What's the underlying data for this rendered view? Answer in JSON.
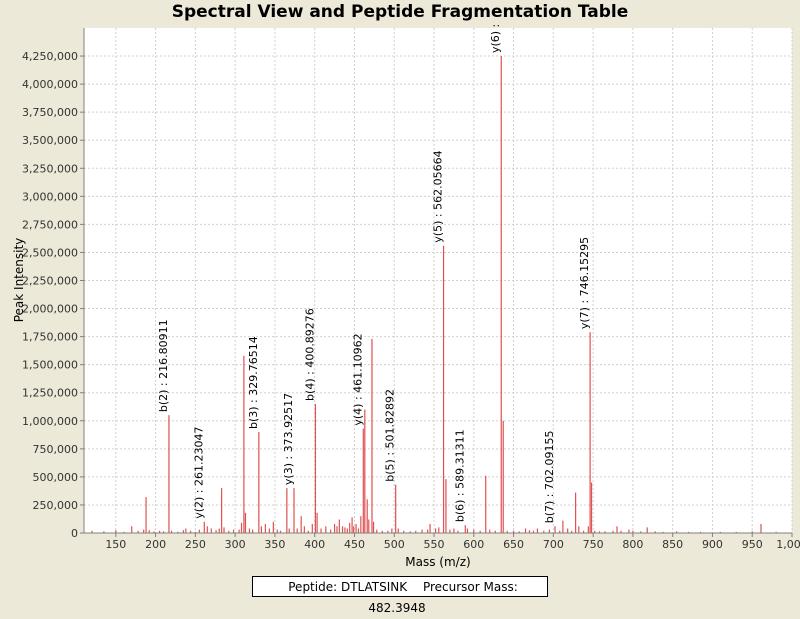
{
  "chart_data": {
    "type": "bar",
    "title": "Spectral View and Peptide Fragmentation Table",
    "xlabel": "Mass (m/z)",
    "ylabel": "Peak Intensity",
    "xlim": [
      110,
      1000
    ],
    "ylim": [
      0,
      4500000
    ],
    "x_ticks": [
      150,
      200,
      250,
      300,
      350,
      400,
      450,
      500,
      550,
      600,
      650,
      700,
      750,
      800,
      850,
      900,
      950,
      1000
    ],
    "x_tick_labels": [
      "150",
      "200",
      "250",
      "300",
      "350",
      "400",
      "450",
      "500",
      "550",
      "600",
      "650",
      "700",
      "750",
      "800",
      "850",
      "900",
      "950",
      "1,000"
    ],
    "y_ticks": [
      0,
      250000,
      500000,
      750000,
      1000000,
      1250000,
      1500000,
      1750000,
      2000000,
      2250000,
      2500000,
      2750000,
      3000000,
      3250000,
      3500000,
      3750000,
      4000000,
      4250000
    ],
    "y_tick_labels": [
      "0",
      "250,000",
      "500,000",
      "750,000",
      "1,000,000",
      "1,250,000",
      "1,500,000",
      "1,750,000",
      "2,000,000",
      "2,250,000",
      "2,500,000",
      "2,750,000",
      "3,000,000",
      "3,250,000",
      "3,500,000",
      "3,750,000",
      "4,000,000",
      "4,250,000"
    ],
    "grid": true,
    "peak_color": "#E05050",
    "peaks": [
      [
        120,
        20000
      ],
      [
        135,
        15000
      ],
      [
        150,
        25000
      ],
      [
        160,
        10000
      ],
      [
        170,
        60000
      ],
      [
        178,
        20000
      ],
      [
        185,
        30000
      ],
      [
        188,
        320000
      ],
      [
        192,
        25000
      ],
      [
        198,
        15000
      ],
      [
        205,
        20000
      ],
      [
        210,
        15000
      ],
      [
        216.8,
        1050000
      ],
      [
        220,
        20000
      ],
      [
        228,
        12000
      ],
      [
        235,
        25000
      ],
      [
        238,
        40000
      ],
      [
        244,
        20000
      ],
      [
        250,
        10000
      ],
      [
        255,
        30000
      ],
      [
        261.2,
        100000
      ],
      [
        265,
        60000
      ],
      [
        270,
        40000
      ],
      [
        276,
        25000
      ],
      [
        280,
        40000
      ],
      [
        283,
        400000
      ],
      [
        286,
        50000
      ],
      [
        292,
        20000
      ],
      [
        298,
        30000
      ],
      [
        305,
        30000
      ],
      [
        308,
        90000
      ],
      [
        311,
        1580000
      ],
      [
        313,
        180000
      ],
      [
        318,
        40000
      ],
      [
        322,
        30000
      ],
      [
        329.8,
        900000
      ],
      [
        333,
        60000
      ],
      [
        338,
        80000
      ],
      [
        343,
        40000
      ],
      [
        348,
        100000
      ],
      [
        353,
        30000
      ],
      [
        357,
        20000
      ],
      [
        365,
        400000
      ],
      [
        368,
        40000
      ],
      [
        374,
        400000
      ],
      [
        378,
        40000
      ],
      [
        383,
        150000
      ],
      [
        387,
        60000
      ],
      [
        392,
        20000
      ],
      [
        397,
        80000
      ],
      [
        400.9,
        1150000
      ],
      [
        403,
        180000
      ],
      [
        408,
        40000
      ],
      [
        414,
        60000
      ],
      [
        420,
        30000
      ],
      [
        425,
        80000
      ],
      [
        428,
        60000
      ],
      [
        431,
        120000
      ],
      [
        435,
        60000
      ],
      [
        438,
        50000
      ],
      [
        441,
        40000
      ],
      [
        444,
        90000
      ],
      [
        447,
        140000
      ],
      [
        449,
        60000
      ],
      [
        452,
        80000
      ],
      [
        455,
        40000
      ],
      [
        458,
        150000
      ],
      [
        461.1,
        930000
      ],
      [
        463,
        1100000
      ],
      [
        466,
        300000
      ],
      [
        468,
        120000
      ],
      [
        472,
        1730000
      ],
      [
        474,
        100000
      ],
      [
        478,
        30000
      ],
      [
        485,
        20000
      ],
      [
        492,
        20000
      ],
      [
        497,
        40000
      ],
      [
        501.8,
        430000
      ],
      [
        505,
        40000
      ],
      [
        512,
        20000
      ],
      [
        520,
        15000
      ],
      [
        527,
        20000
      ],
      [
        535,
        30000
      ],
      [
        542,
        30000
      ],
      [
        545,
        80000
      ],
      [
        552,
        40000
      ],
      [
        556,
        50000
      ],
      [
        562,
        2560000
      ],
      [
        565,
        480000
      ],
      [
        570,
        30000
      ],
      [
        575,
        40000
      ],
      [
        580,
        20000
      ],
      [
        589.3,
        70000
      ],
      [
        592,
        40000
      ],
      [
        600,
        30000
      ],
      [
        608,
        20000
      ],
      [
        615,
        510000
      ],
      [
        620,
        30000
      ],
      [
        627,
        20000
      ],
      [
        634.5,
        4250000
      ],
      [
        637,
        1000000
      ],
      [
        642,
        20000
      ],
      [
        650,
        20000
      ],
      [
        657,
        15000
      ],
      [
        665,
        40000
      ],
      [
        670,
        25000
      ],
      [
        675,
        20000
      ],
      [
        680,
        40000
      ],
      [
        688,
        20000
      ],
      [
        695,
        30000
      ],
      [
        702.1,
        60000
      ],
      [
        708,
        20000
      ],
      [
        712,
        110000
      ],
      [
        718,
        40000
      ],
      [
        723,
        20000
      ],
      [
        728,
        360000
      ],
      [
        732,
        60000
      ],
      [
        738,
        20000
      ],
      [
        744,
        60000
      ],
      [
        746.2,
        1790000
      ],
      [
        748,
        450000
      ],
      [
        752,
        20000
      ],
      [
        758,
        15000
      ],
      [
        765,
        15000
      ],
      [
        775,
        20000
      ],
      [
        780,
        60000
      ],
      [
        785,
        20000
      ],
      [
        795,
        30000
      ],
      [
        800,
        20000
      ],
      [
        810,
        15000
      ],
      [
        818,
        50000
      ],
      [
        828,
        15000
      ],
      [
        838,
        10000
      ],
      [
        855,
        15000
      ],
      [
        870,
        10000
      ],
      [
        885,
        10000
      ],
      [
        910,
        10000
      ],
      [
        930,
        10000
      ],
      [
        950,
        15000
      ],
      [
        961,
        80000
      ],
      [
        980,
        10000
      ]
    ],
    "annotations": [
      {
        "label": "b(2) : 216.80911",
        "x": 216.8,
        "y": 1050000
      },
      {
        "label": "y(2) : 261.23047",
        "x": 261.2,
        "y": 100000
      },
      {
        "label": "b(3) : 329.76514",
        "x": 329.8,
        "y": 900000
      },
      {
        "label": "y(3) : 373.92517",
        "x": 374,
        "y": 400000
      },
      {
        "label": "b(4) : 400.89276",
        "x": 400.9,
        "y": 1150000
      },
      {
        "label": "y(4) : 461.10962",
        "x": 461.1,
        "y": 930000
      },
      {
        "label": "b(5) : 501.82892",
        "x": 501.8,
        "y": 430000
      },
      {
        "label": "y(5) : 562.05664",
        "x": 562,
        "y": 2560000
      },
      {
        "label": "b(6) : 589.31311",
        "x": 589.3,
        "y": 70000
      },
      {
        "label": "y(6) :",
        "x": 634.5,
        "y": 4250000
      },
      {
        "label": "b(7) : 702.09155",
        "x": 702.1,
        "y": 60000
      },
      {
        "label": "y(7) : 746.15295",
        "x": 746.2,
        "y": 1790000
      }
    ]
  },
  "legend": {
    "peptide": "Peptide: DTLATSINK",
    "precursor": "Precursor Mass: 482.3948"
  }
}
